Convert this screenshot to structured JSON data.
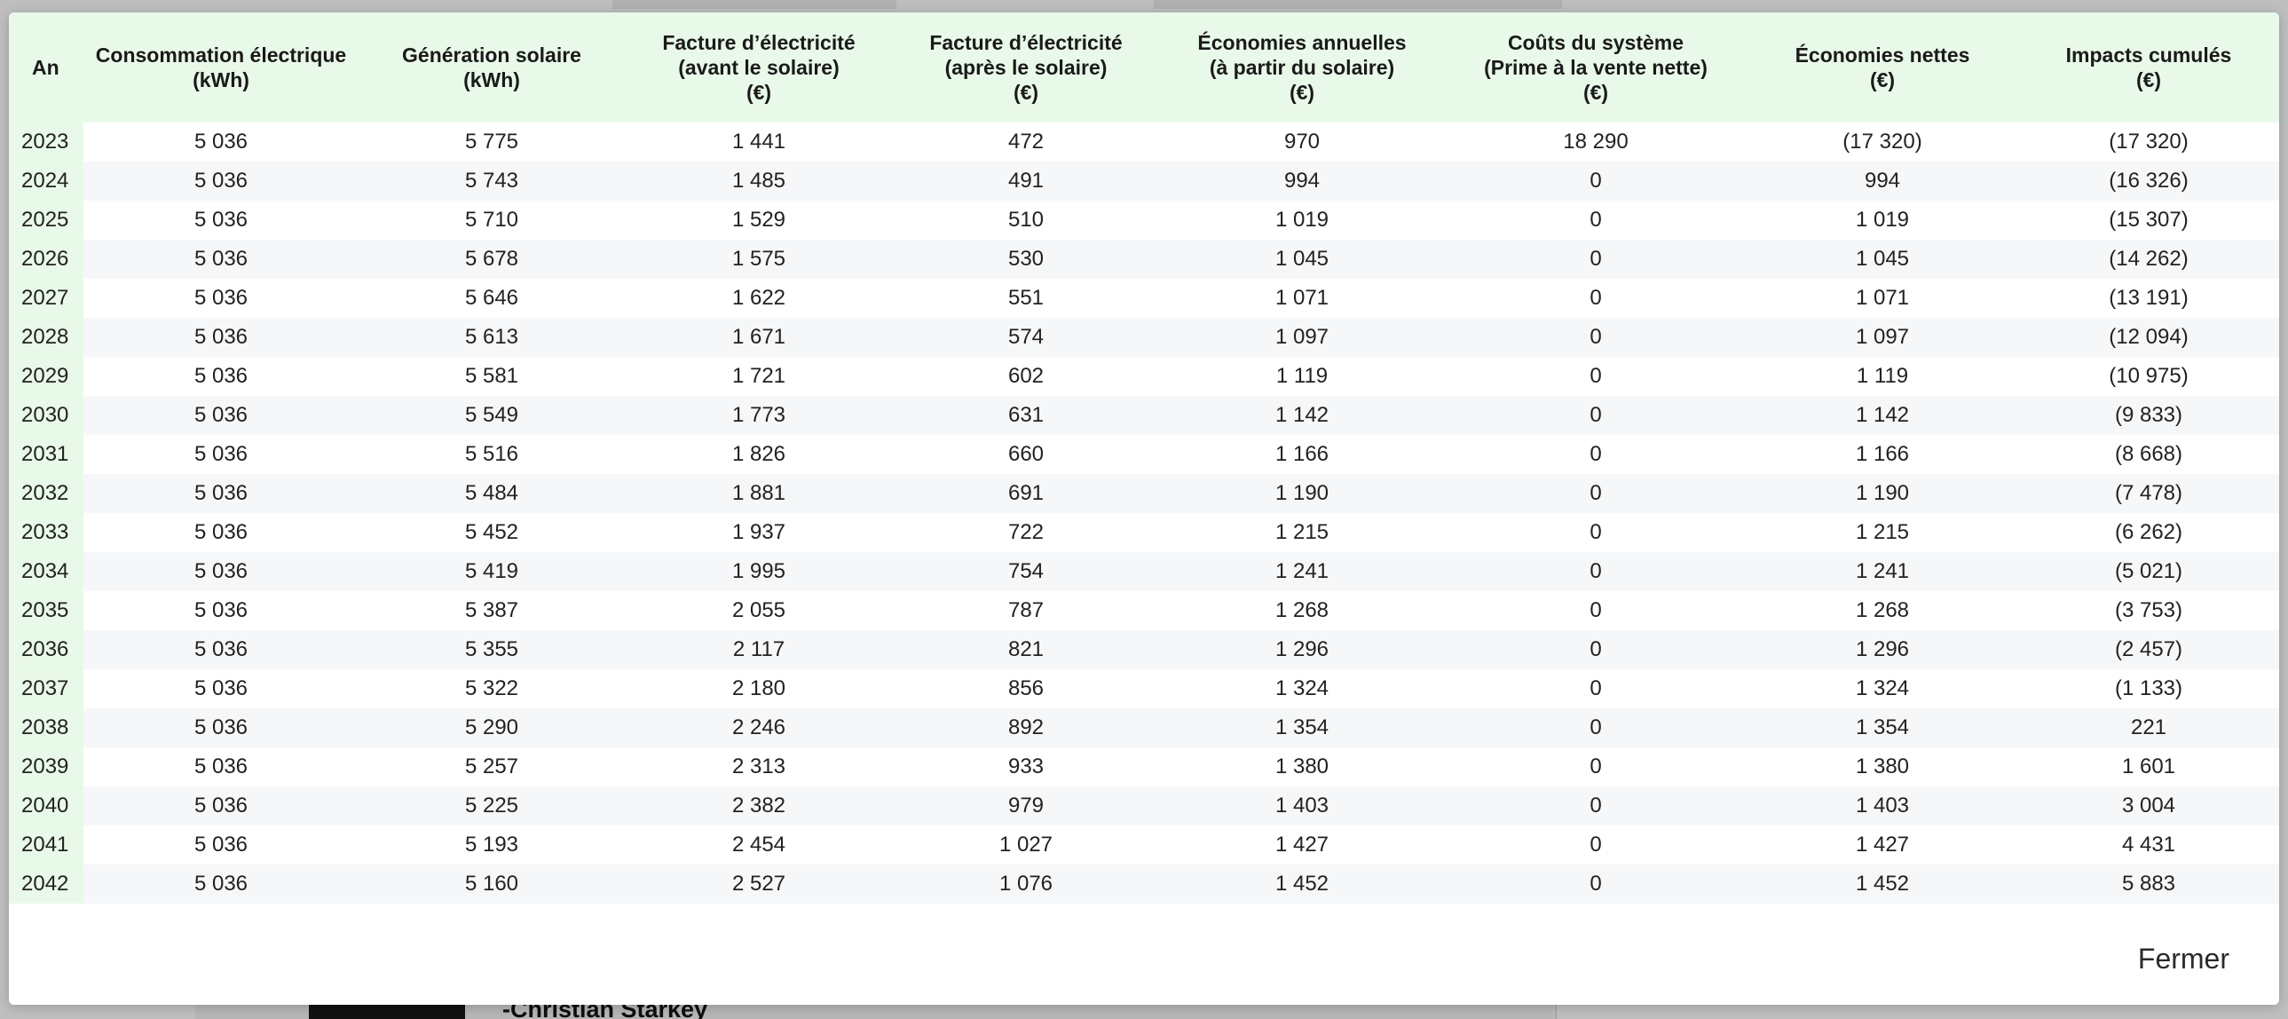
{
  "background": {
    "quote_author": "-Christian Starkey"
  },
  "modal": {
    "close_label": "Fermer",
    "columns": [
      "An",
      "Consommation électrique\n(kWh)",
      "Génération solaire\n(kWh)",
      "Facture d’électricité\n(avant le solaire)\n(€)",
      "Facture d’électricité\n(après le solaire)\n(€)",
      "Économies annuelles\n(à partir du solaire)\n(€)",
      "Coûts du système\n(Prime à la vente nette)\n(€)",
      "Économies nettes\n(€)",
      "Impacts cumulés\n(€)"
    ],
    "rows": [
      [
        "2023",
        "5 036",
        "5 775",
        "1 441",
        "472",
        "970",
        "18 290",
        "(17 320)",
        "(17 320)"
      ],
      [
        "2024",
        "5 036",
        "5 743",
        "1 485",
        "491",
        "994",
        "0",
        "994",
        "(16 326)"
      ],
      [
        "2025",
        "5 036",
        "5 710",
        "1 529",
        "510",
        "1 019",
        "0",
        "1 019",
        "(15 307)"
      ],
      [
        "2026",
        "5 036",
        "5 678",
        "1 575",
        "530",
        "1 045",
        "0",
        "1 045",
        "(14 262)"
      ],
      [
        "2027",
        "5 036",
        "5 646",
        "1 622",
        "551",
        "1 071",
        "0",
        "1 071",
        "(13 191)"
      ],
      [
        "2028",
        "5 036",
        "5 613",
        "1 671",
        "574",
        "1 097",
        "0",
        "1 097",
        "(12 094)"
      ],
      [
        "2029",
        "5 036",
        "5 581",
        "1 721",
        "602",
        "1 119",
        "0",
        "1 119",
        "(10 975)"
      ],
      [
        "2030",
        "5 036",
        "5 549",
        "1 773",
        "631",
        "1 142",
        "0",
        "1 142",
        "(9 833)"
      ],
      [
        "2031",
        "5 036",
        "5 516",
        "1 826",
        "660",
        "1 166",
        "0",
        "1 166",
        "(8 668)"
      ],
      [
        "2032",
        "5 036",
        "5 484",
        "1 881",
        "691",
        "1 190",
        "0",
        "1 190",
        "(7 478)"
      ],
      [
        "2033",
        "5 036",
        "5 452",
        "1 937",
        "722",
        "1 215",
        "0",
        "1 215",
        "(6 262)"
      ],
      [
        "2034",
        "5 036",
        "5 419",
        "1 995",
        "754",
        "1 241",
        "0",
        "1 241",
        "(5 021)"
      ],
      [
        "2035",
        "5 036",
        "5 387",
        "2 055",
        "787",
        "1 268",
        "0",
        "1 268",
        "(3 753)"
      ],
      [
        "2036",
        "5 036",
        "5 355",
        "2 117",
        "821",
        "1 296",
        "0",
        "1 296",
        "(2 457)"
      ],
      [
        "2037",
        "5 036",
        "5 322",
        "2 180",
        "856",
        "1 324",
        "0",
        "1 324",
        "(1 133)"
      ],
      [
        "2038",
        "5 036",
        "5 290",
        "2 246",
        "892",
        "1 354",
        "0",
        "1 354",
        "221"
      ],
      [
        "2039",
        "5 036",
        "5 257",
        "2 313",
        "933",
        "1 380",
        "0",
        "1 380",
        "1 601"
      ],
      [
        "2040",
        "5 036",
        "5 225",
        "2 382",
        "979",
        "1 403",
        "0",
        "1 403",
        "3 004"
      ],
      [
        "2041",
        "5 036",
        "5 193",
        "2 454",
        "1 027",
        "1 427",
        "0",
        "1 427",
        "4 431"
      ],
      [
        "2042",
        "5 036",
        "5 160",
        "2 527",
        "1 076",
        "1 452",
        "0",
        "1 452",
        "5 883"
      ]
    ]
  },
  "colors": {
    "header_bg": "#e9f9e9",
    "year_col_bg": "#e9f9e9",
    "stripe_bg": "#f6f7f8",
    "text": "#222222"
  }
}
